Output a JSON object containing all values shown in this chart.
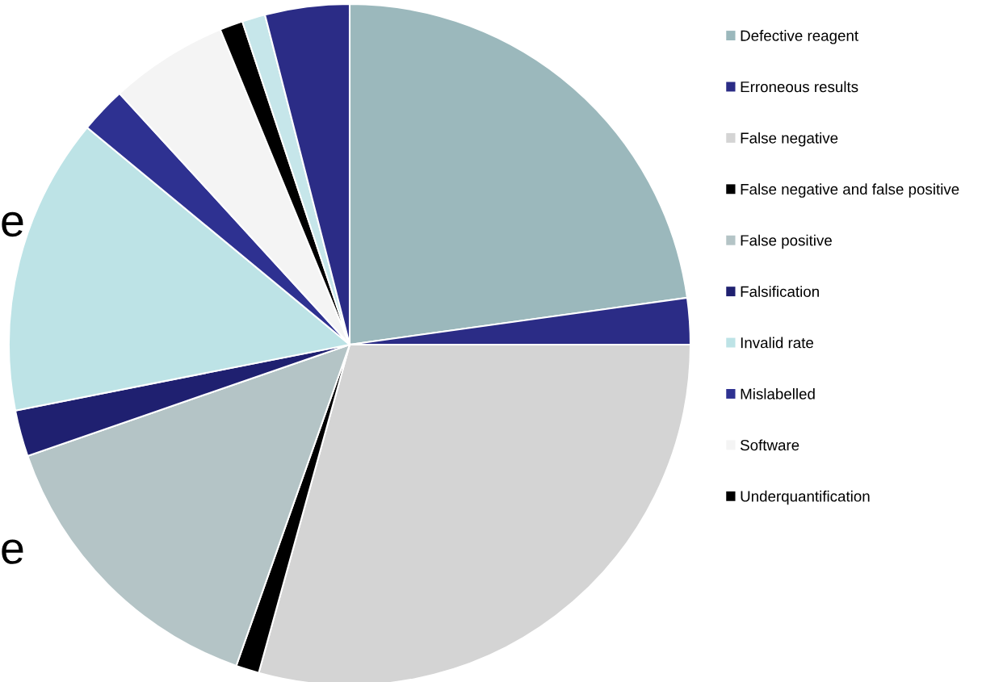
{
  "chart_data": {
    "type": "pie",
    "categories": [
      "Defective reagent",
      "Erroneous results",
      "False negative",
      "False negative and false positive",
      "False positive",
      "Falsification",
      "Invalid rate",
      "Mislabelled",
      "Software",
      "Underquantification",
      null,
      null
    ],
    "values": [
      22.8,
      2.2,
      29.3,
      1.1,
      14.3,
      2.2,
      14.1,
      2.2,
      5.6,
      1.1,
      1.1,
      4.0
    ],
    "colors": [
      "#9bb8bc",
      "#2b2c86",
      "#d4d4d4",
      "#000000",
      "#b4c4c6",
      "#1f2070",
      "#bde3e6",
      "#2e3191",
      "#f4f4f4",
      "#000000",
      "#c6e6ea",
      "#2b2c86"
    ],
    "legend": "right",
    "annotations": [
      "e",
      "e"
    ]
  }
}
